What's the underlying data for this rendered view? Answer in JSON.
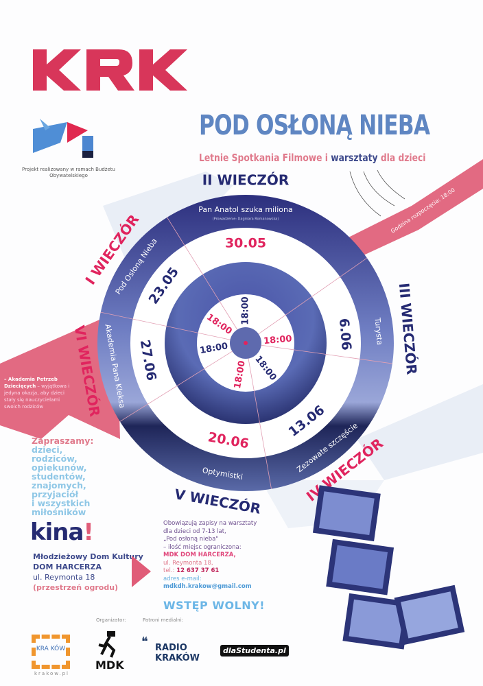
{
  "logo": {
    "text": "KRK",
    "color": "#d8365a"
  },
  "project_note": "Projekt realizowany w ramach Budżetu Obywatelskiego",
  "title": "POD OSŁONĄ NIEBA",
  "subtitle": {
    "part1": "Letnie Spotkania Filmowe i ",
    "part2": "warsztaty",
    "part3": " dla dzieci"
  },
  "start_time": "Godzina rozpoczęcia: 18:00",
  "evenings": [
    {
      "label": "I WIECZÓR",
      "date": "23.05",
      "film": "Pod Osłoną Nieba",
      "time": "18:00"
    },
    {
      "label": "II WIECZÓR",
      "date": "30.05",
      "film": "Pan Anatol szuka miliona",
      "host": "(Prowadzenie: Dagmara Romanowska)",
      "time": "18:00"
    },
    {
      "label": "III WIECZÓR",
      "date": "6.06",
      "film": "Turysta",
      "time": "18:00"
    },
    {
      "label": "IV WIECZÓR",
      "date": "13.06",
      "film": "Zezowate szczęście",
      "time": "18:00"
    },
    {
      "label": "V WIECZÓR",
      "date": "20.06",
      "film": "Optymistki",
      "time": "18:00"
    },
    {
      "label": "VI WIECZÓR",
      "date": "27.06",
      "film": "Akademia Pana Kleksa",
      "time": "18:00"
    }
  ],
  "vi_note": {
    "bold": "– Akademia Petrzeb Dziecięcych",
    "rest": " – wyjątkowa i jedyna okazja, aby dzieci stały się nauczycielami swoich rodziców"
  },
  "invite": {
    "heading": "Zapraszamy:",
    "lines": [
      "dzieci,",
      "rodziców,",
      "opiekunów,",
      "studentów,",
      "znajomych,",
      "przyjaciół",
      "i wszystkich",
      "miłośników"
    ]
  },
  "kina": "kina",
  "kina_mark": "!",
  "venue": {
    "line1": "Młodzieżowy Dom Kultury",
    "line2": "DOM HARCERZA",
    "line3": "ul. Reymonta 18",
    "line4": "(przestrzeń ogrodu)"
  },
  "info": {
    "line1": "Obowiązują zapisy na warsztaty",
    "line2": "dla dzieci od 7-13 lat,",
    "line3": "„Pod osłoną nieba\"",
    "line4": "– ilość miejsc ograniczona:",
    "line5": "MDK DOM HARCERZA,",
    "line6": "ul. Reymonta 18,",
    "tel_label": "tel.: ",
    "tel": "12 637 37 61",
    "email_label": "adres e-mail:",
    "email": "mdkdh.krakow@gmail.com"
  },
  "free_entry": "WSTĘP WOLNY!",
  "footer": {
    "organizer_label": "Organizator:",
    "patrons_label": "Patroni medialni:",
    "krakow_logo": "KRA KÓW",
    "krakow_url": "krakow.pl",
    "mdk_logo": "MDK",
    "radio_line1": "RADIO",
    "radio_line2": "KRAKÓW",
    "dlastudenta": "dlaStudenta.pl"
  },
  "colors": {
    "pink": "#e05c78",
    "navy": "#252a72",
    "blue": "#5f86c2",
    "light_blue": "#8fc7e6"
  }
}
